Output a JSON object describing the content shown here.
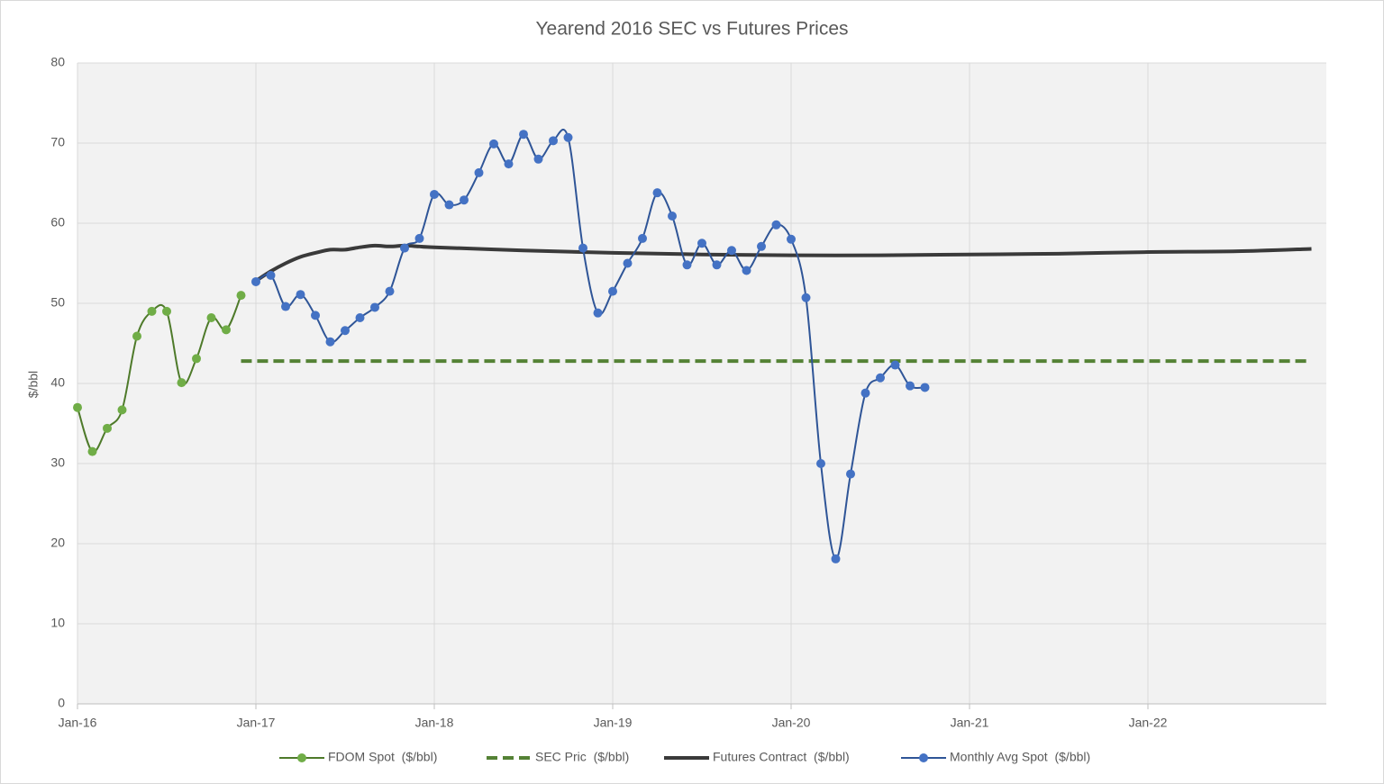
{
  "chart_data": {
    "type": "line",
    "title": "Yearend 2016 SEC vs Futures Prices",
    "y_label": "$/bbl",
    "xlim": [
      0,
      84
    ],
    "xticks": [
      {
        "value": 0,
        "label": "Jan-16"
      },
      {
        "value": 12,
        "label": "Jan-17"
      },
      {
        "value": 24,
        "label": "Jan-18"
      },
      {
        "value": 36,
        "label": "Jan-19"
      },
      {
        "value": 48,
        "label": "Jan-20"
      },
      {
        "value": 60,
        "label": "Jan-21"
      },
      {
        "value": 72,
        "label": "Jan-22"
      }
    ],
    "ylim": [
      0,
      80
    ],
    "yticks": [
      0,
      10,
      20,
      30,
      40,
      50,
      60,
      70,
      80
    ],
    "grid": true,
    "legend": "bottom",
    "series": [
      {
        "name": "FDOM Spot  ($/bbl)",
        "color": "#4e7a2a",
        "marker_color": "#70ad47",
        "markers": true,
        "style": "solid",
        "width": 2,
        "x": [
          0,
          1,
          2,
          3,
          4,
          5,
          6,
          7,
          8,
          9,
          10,
          11
        ],
        "values": [
          37,
          31.5,
          34.4,
          36.7,
          45.9,
          49,
          49,
          40.1,
          43.1,
          48.2,
          46.7,
          51
        ]
      },
      {
        "name": "SEC Pric  ($/bbl)",
        "color": "#548235",
        "markers": false,
        "style": "dashed",
        "width": 4,
        "x": [
          11,
          83
        ],
        "values": [
          42.8,
          42.8
        ]
      },
      {
        "name": "Futures Contract  ($/bbl)",
        "color": "#3a3a3a",
        "markers": false,
        "style": "solid",
        "width": 4,
        "x": [
          12,
          13,
          14,
          15,
          16,
          17,
          18,
          19,
          20,
          21,
          22,
          23,
          24,
          30,
          36,
          42,
          48,
          54,
          60,
          66,
          72,
          78,
          83
        ],
        "values": [
          52.8,
          54,
          55,
          55.8,
          56.3,
          56.7,
          56.7,
          57,
          57.2,
          57.1,
          57.2,
          57.1,
          57,
          56.6,
          56.3,
          56.1,
          56,
          56,
          56.1,
          56.2,
          56.4,
          56.5,
          56.8
        ]
      },
      {
        "name": "Monthly Avg Spot  ($/bbl)",
        "color": "#2f5597",
        "marker_color": "#4472c4",
        "markers": true,
        "style": "solid",
        "width": 2,
        "x": [
          12,
          13,
          14,
          15,
          16,
          17,
          18,
          19,
          20,
          21,
          22,
          23,
          24,
          25,
          26,
          27,
          28,
          29,
          30,
          31,
          32,
          33,
          34,
          35,
          36,
          37,
          38,
          39,
          40,
          41,
          42,
          43,
          44,
          45,
          46,
          47,
          48,
          49,
          50,
          51,
          52,
          53,
          54,
          55,
          56,
          57
        ],
        "values": [
          52.7,
          53.5,
          49.6,
          51.1,
          48.5,
          45.2,
          46.6,
          48.2,
          49.5,
          51.5,
          56.9,
          58.1,
          63.6,
          62.3,
          62.9,
          66.3,
          69.9,
          67.4,
          71.1,
          68,
          70.3,
          70.7,
          56.9,
          48.8,
          51.5,
          55,
          58.1,
          63.8,
          60.9,
          54.8,
          57.5,
          54.8,
          56.6,
          54.1,
          57.1,
          59.8,
          58,
          50.7,
          30,
          18.1,
          28.7,
          38.8,
          40.7,
          42.3,
          39.7,
          39.5
        ]
      }
    ]
  }
}
